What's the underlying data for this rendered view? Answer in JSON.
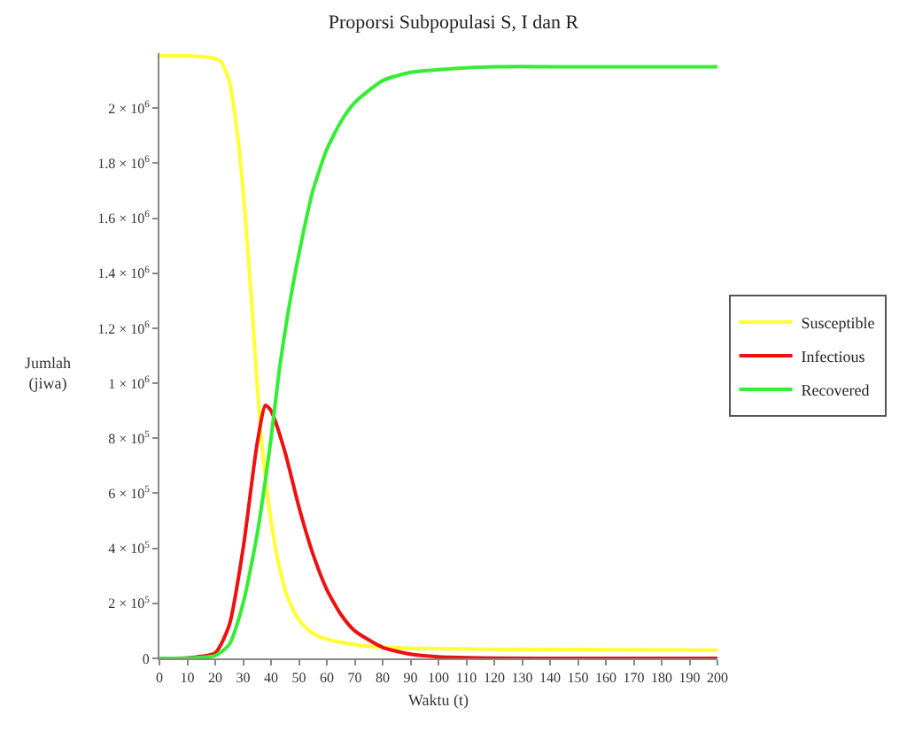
{
  "chart_data": {
    "type": "line",
    "title": "Proporsi Subpopulasi S, I dan R",
    "xlabel": "Waktu (t)",
    "ylabel": "Jumlah (jiwa)",
    "series": [
      {
        "name": "Susceptible",
        "color": "#ffff33",
        "x": [
          0,
          10,
          20,
          22,
          25,
          28,
          30,
          33,
          35,
          37,
          40,
          43,
          46,
          50,
          55,
          60,
          70,
          80,
          100,
          150,
          200
        ],
        "values": [
          2190000,
          2190000,
          2180000,
          2170000,
          2100000,
          1900000,
          1700000,
          1300000,
          1000000,
          750000,
          500000,
          330000,
          220000,
          140000,
          90000,
          70000,
          50000,
          40000,
          35000,
          32000,
          30000
        ]
      },
      {
        "name": "Infectious",
        "color": "#ee1111",
        "x": [
          0,
          10,
          20,
          25,
          30,
          35,
          38,
          40,
          45,
          50,
          55,
          60,
          65,
          70,
          80,
          90,
          100,
          120,
          150,
          200
        ],
        "values": [
          0,
          2000,
          20000,
          120000,
          400000,
          780000,
          920000,
          900000,
          750000,
          550000,
          380000,
          250000,
          160000,
          100000,
          40000,
          15000,
          6000,
          1000,
          0,
          0
        ]
      },
      {
        "name": "Recovered",
        "color": "#33ee33",
        "x": [
          0,
          10,
          20,
          25,
          30,
          35,
          38,
          40,
          43,
          46,
          50,
          55,
          60,
          65,
          70,
          80,
          90,
          100,
          120,
          150,
          200
        ],
        "values": [
          0,
          1000,
          10000,
          50000,
          200000,
          450000,
          650000,
          800000,
          1050000,
          1250000,
          1470000,
          1700000,
          1850000,
          1950000,
          2020000,
          2100000,
          2130000,
          2140000,
          2150000,
          2150000,
          2150000
        ]
      }
    ],
    "xlim": [
      0,
      200
    ],
    "xticks": [
      0,
      10,
      20,
      30,
      40,
      50,
      60,
      70,
      80,
      90,
      100,
      110,
      120,
      130,
      140,
      150,
      160,
      170,
      180,
      190,
      200
    ],
    "ylim": [
      0,
      2200000
    ],
    "yticks": [
      0,
      {
        "value": 200000,
        "label": "2 × 10$^{5}$"
      },
      {
        "value": 400000,
        "label": "4 × 10$^{5}$"
      },
      {
        "value": 600000,
        "label": "6 × 10$^{5}$"
      },
      {
        "value": 800000,
        "label": "8 × 10$^{5}$"
      },
      {
        "value": 1000000,
        "label": "1 × 10$^{6}$"
      },
      {
        "value": 1200000,
        "label": "1.2 × 10$^{6}$"
      },
      {
        "value": 1400000,
        "label": "1.4 × 10$^{6}$"
      },
      {
        "value": 1600000,
        "label": "1.6 × 10$^{6}$"
      },
      {
        "value": 1800000,
        "label": "1.8 × 10$^{6}$"
      },
      {
        "value": 2000000,
        "label": "2 × 10$^{6}$"
      }
    ],
    "grid": false,
    "legend": "right",
    "marker": "none",
    "line_style": "solid"
  }
}
